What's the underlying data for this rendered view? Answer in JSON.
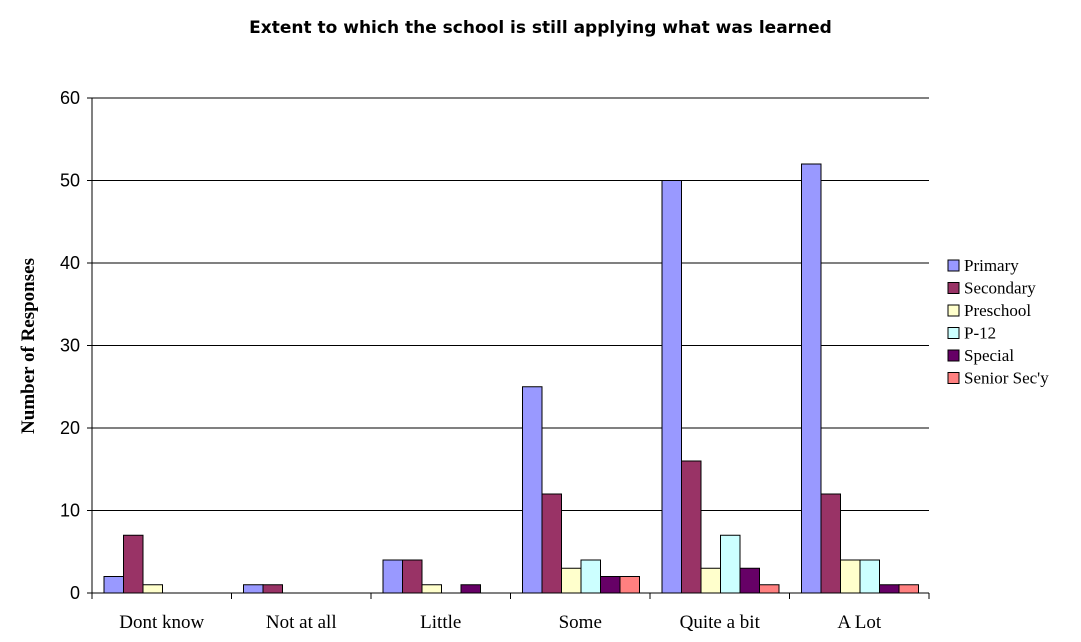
{
  "chart_data": {
    "type": "bar",
    "title": "Extent to which the school is still applying what was learned",
    "xlabel": "",
    "ylabel": "Number of Responses",
    "ylim": [
      0,
      60
    ],
    "yticks": [
      0,
      10,
      20,
      30,
      40,
      50,
      60
    ],
    "grid": true,
    "legend_position": "right",
    "categories": [
      "Dont know",
      "Not at all",
      "Little",
      "Some",
      "Quite a bit",
      "A Lot"
    ],
    "series": [
      {
        "name": "Primary",
        "color": "#9999ff",
        "values": [
          2,
          1,
          4,
          25,
          50,
          52
        ]
      },
      {
        "name": "Secondary",
        "color": "#993366",
        "values": [
          7,
          1,
          4,
          12,
          16,
          12
        ]
      },
      {
        "name": "Preschool",
        "color": "#ffffcc",
        "values": [
          1,
          0,
          1,
          3,
          3,
          4
        ]
      },
      {
        "name": "P-12",
        "color": "#ccffff",
        "values": [
          0,
          0,
          0,
          4,
          7,
          4
        ]
      },
      {
        "name": "Special",
        "color": "#660066",
        "values": [
          0,
          0,
          1,
          2,
          3,
          1
        ]
      },
      {
        "name": "Senior Sec'y",
        "color": "#ff8080",
        "values": [
          0,
          0,
          0,
          2,
          1,
          1
        ]
      }
    ]
  }
}
